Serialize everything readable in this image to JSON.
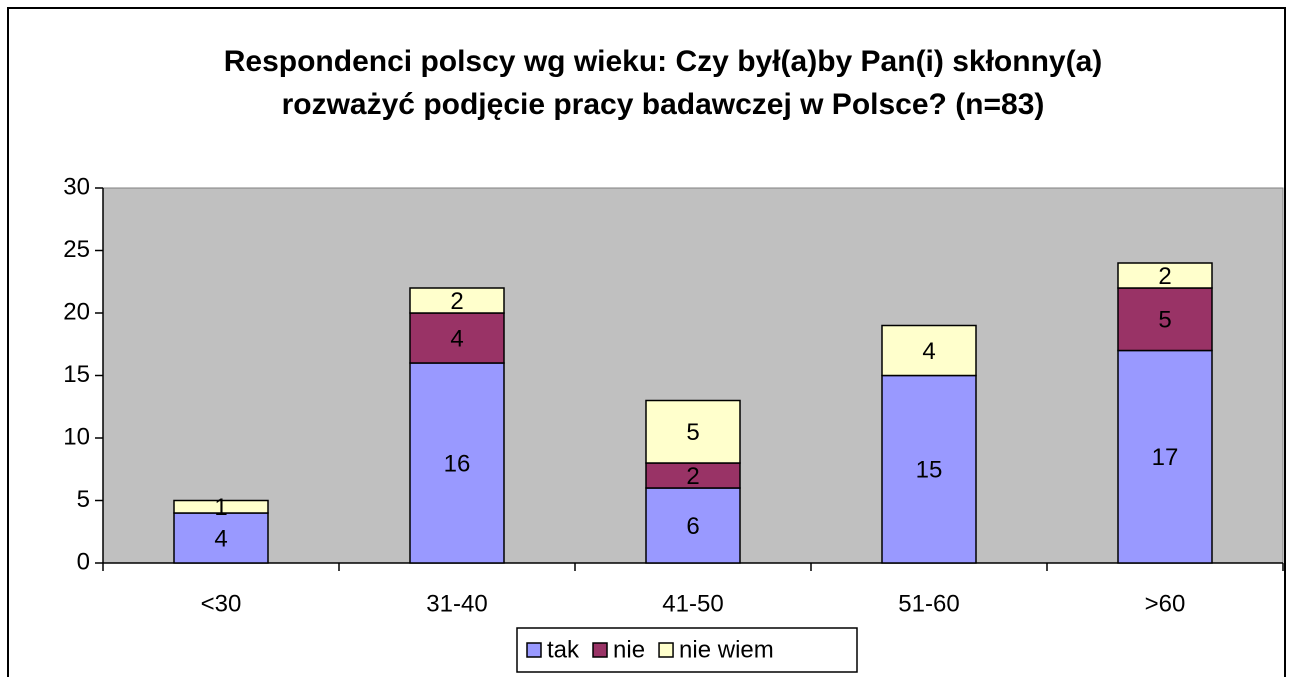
{
  "chart_data": {
    "type": "stacked_bar",
    "title": "Respondenci polscy wg wieku: Czy był(a)by Pan(i) skłonny(a)  rozważyć podjęcie pracy badawczej w Polsce? (n=83)",
    "categories": [
      "<30",
      "31-40",
      "41-50",
      "51-60",
      ">60"
    ],
    "series": [
      {
        "name": "tak",
        "color": "#9999ff",
        "values": [
          4,
          16,
          6,
          15,
          17
        ]
      },
      {
        "name": "nie",
        "color": "#993366",
        "values": [
          null,
          4,
          2,
          null,
          5
        ]
      },
      {
        "name": "nie wiem",
        "color": "#ffffcc",
        "values": [
          1,
          2,
          5,
          4,
          2
        ]
      }
    ],
    "ylim": [
      0,
      30
    ],
    "yticks": [
      0,
      5,
      10,
      15,
      20,
      25,
      30
    ],
    "legend": "bottom"
  }
}
